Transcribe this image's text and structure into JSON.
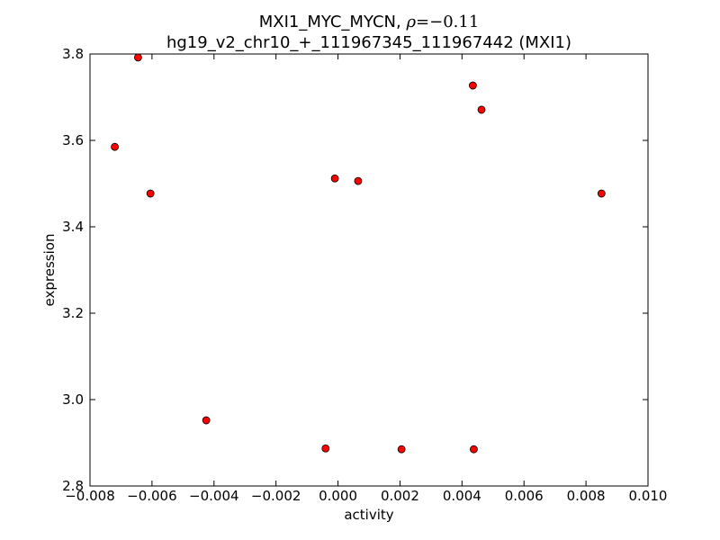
{
  "chart_data": {
    "type": "scatter",
    "title_line1_prefix": "MXI1_MYC_MYCN, ",
    "title_rho_symbol": "ρ",
    "title_rho_value": "=−0.11",
    "title_line2": "hg19_v2_chr10_+_111967345_111967442 (MXI1)",
    "xlabel": "activity",
    "ylabel": "expression",
    "xlim": [
      -0.008,
      0.01
    ],
    "ylim": [
      2.8,
      3.8
    ],
    "xticks": [
      -0.008,
      -0.006,
      -0.004,
      -0.002,
      0.0,
      0.002,
      0.004,
      0.006,
      0.008,
      0.01
    ],
    "xtick_labels": [
      "−0.008",
      "−0.006",
      "−0.004",
      "−0.002",
      "0.000",
      "0.002",
      "0.004",
      "0.006",
      "0.008",
      "0.010"
    ],
    "yticks": [
      2.8,
      3.0,
      3.2,
      3.4,
      3.6,
      3.8
    ],
    "ytick_labels": [
      "2.8",
      "3.0",
      "3.2",
      "3.4",
      "3.6",
      "3.8"
    ],
    "grid": false,
    "marker_color": "#ff0000",
    "marker_edge_color": "#000000",
    "points": [
      {
        "x": -0.00645,
        "y": 3.792
      },
      {
        "x": -0.0072,
        "y": 3.585
      },
      {
        "x": -0.00605,
        "y": 3.477
      },
      {
        "x": -0.00425,
        "y": 2.952
      },
      {
        "x": -0.0004,
        "y": 2.887
      },
      {
        "x": -0.0001,
        "y": 3.512
      },
      {
        "x": 0.00065,
        "y": 3.506
      },
      {
        "x": 0.00205,
        "y": 2.885
      },
      {
        "x": 0.00435,
        "y": 3.727
      },
      {
        "x": 0.00438,
        "y": 2.885
      },
      {
        "x": 0.00463,
        "y": 3.671
      },
      {
        "x": 0.0085,
        "y": 3.477
      }
    ]
  }
}
